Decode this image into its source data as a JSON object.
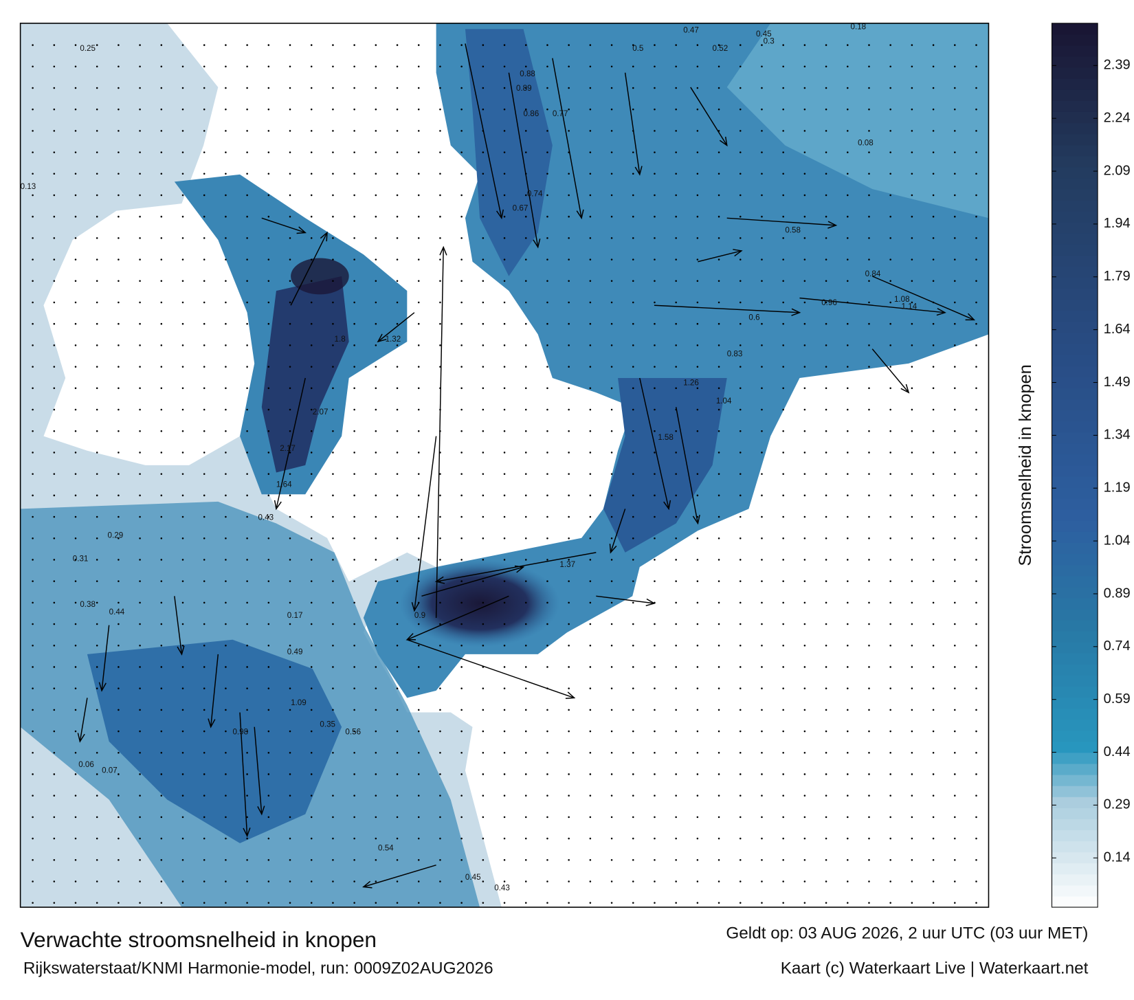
{
  "map": {
    "title": "Verwachte stroomsnelheid in knopen",
    "valid_time": "Geldt op: 03 AUG 2026, 2 uur UTC (03 uur MET)",
    "source": "Rijkswaterstaat/KNMI Harmonie-model, run: 0009Z02AUG2026",
    "credit": "Kaart (c) Waterkaart Live | Waterkaart.net",
    "colorbar": {
      "label": "Stroomsnelheid in knopen",
      "range": [
        0,
        2.51
      ],
      "ticks": [
        0.14,
        0.29,
        0.44,
        0.59,
        0.74,
        0.89,
        1.04,
        1.19,
        1.34,
        1.49,
        1.64,
        1.79,
        1.94,
        2.09,
        2.24,
        2.39
      ]
    },
    "speed_labels": [
      0.47,
      0.52,
      0.5,
      0.45,
      0.3,
      0.17,
      0.18,
      0.08,
      0.88,
      0.89,
      0.86,
      0.77,
      0.74,
      0.67,
      0.58,
      0.6,
      0.84,
      1.08,
      1.14,
      0.96,
      0.83,
      1.26,
      1.04,
      1.58,
      1.64,
      2.07,
      2.17,
      1.8,
      1.32,
      1.37,
      0.9,
      0.98,
      1.09,
      0.43,
      0.29,
      0.31,
      0.44,
      0.56,
      0.35,
      0.06,
      0.07,
      0.13,
      0.25,
      0.38,
      0.49,
      0.54,
      0.45,
      0.43
    ]
  }
}
